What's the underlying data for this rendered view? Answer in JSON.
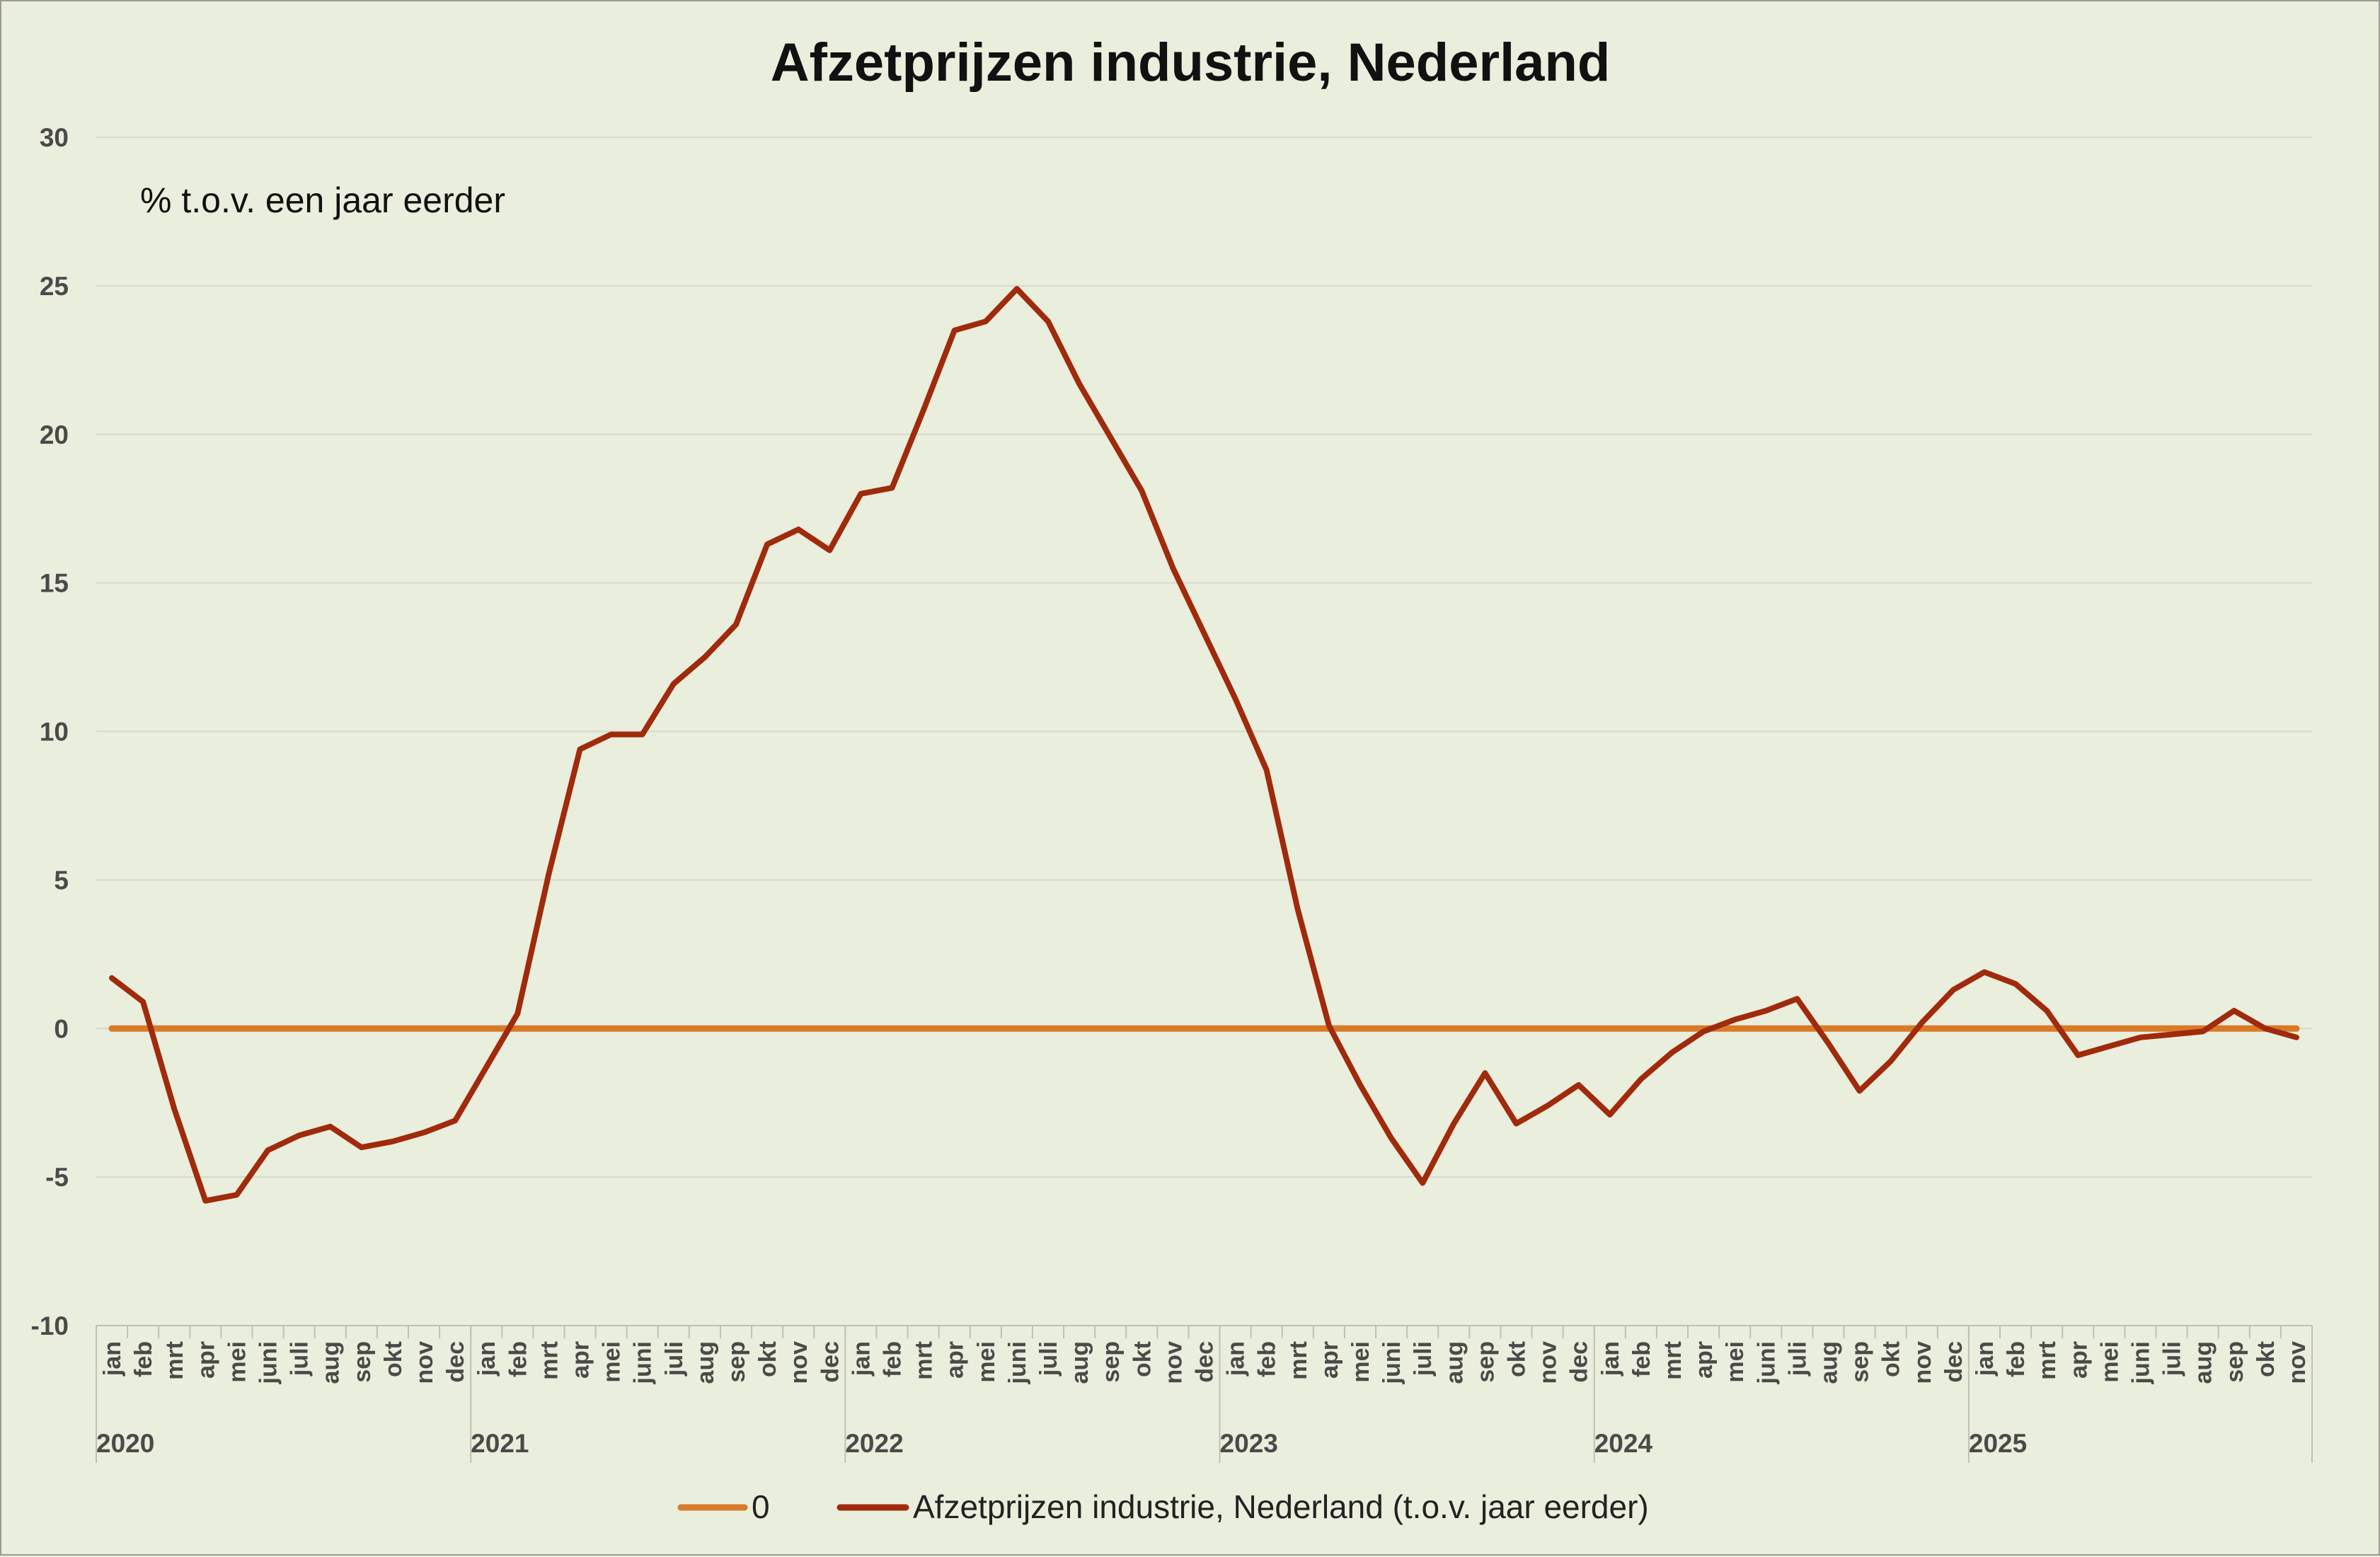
{
  "chart_data": {
    "type": "line",
    "title": "Afzetprijzen industrie, Nederland",
    "subtitle": "% t.o.v. een jaar eerder",
    "xlabel": "",
    "ylabel": "",
    "ylim": [
      -10,
      30
    ],
    "yticks": [
      -10,
      -5,
      0,
      5,
      10,
      15,
      20,
      25,
      30
    ],
    "grid": true,
    "legend_position": "bottom",
    "months": [
      "jan",
      "feb",
      "mrt",
      "apr",
      "mei",
      "juni",
      "juli",
      "aug",
      "sep",
      "okt",
      "nov",
      "dec"
    ],
    "years": [
      "2020",
      "2021",
      "2022",
      "2023",
      "2024",
      "2025"
    ],
    "categories_count": 71,
    "series": [
      {
        "name": "0",
        "color": "#d97a28",
        "values": [
          0,
          0,
          0,
          0,
          0,
          0,
          0,
          0,
          0,
          0,
          0,
          0,
          0,
          0,
          0,
          0,
          0,
          0,
          0,
          0,
          0,
          0,
          0,
          0,
          0,
          0,
          0,
          0,
          0,
          0,
          0,
          0,
          0,
          0,
          0,
          0,
          0,
          0,
          0,
          0,
          0,
          0,
          0,
          0,
          0,
          0,
          0,
          0,
          0,
          0,
          0,
          0,
          0,
          0,
          0,
          0,
          0,
          0,
          0,
          0,
          0,
          0,
          0,
          0,
          0,
          0,
          0,
          0,
          0,
          0,
          0
        ]
      },
      {
        "name": "Afzetprijzen industrie, Nederland (t.o.v. jaar eerder)",
        "color": "#a02a0c",
        "values": [
          1.7,
          0.9,
          -2.7,
          -5.8,
          -5.6,
          -4.1,
          -3.6,
          -3.3,
          -4.0,
          -3.8,
          -3.5,
          -3.1,
          -1.3,
          0.5,
          5.2,
          9.4,
          9.9,
          9.9,
          11.6,
          12.5,
          13.6,
          16.3,
          16.8,
          16.1,
          18.0,
          18.2,
          20.8,
          23.5,
          23.8,
          24.9,
          23.8,
          21.7,
          19.9,
          18.1,
          15.5,
          13.3,
          11.1,
          8.7,
          4.0,
          0.1,
          -1.9,
          -3.7,
          -5.2,
          -3.2,
          -1.5,
          -3.2,
          -2.6,
          -1.9,
          -2.9,
          -1.7,
          -0.8,
          -0.1,
          0.3,
          0.6,
          1.0,
          -0.5,
          -2.1,
          -1.1,
          0.2,
          1.3,
          1.9,
          1.5,
          0.6,
          -0.9,
          -0.6,
          -0.3,
          -0.2,
          -0.1,
          0.6,
          0.0,
          -0.3
        ]
      }
    ]
  }
}
